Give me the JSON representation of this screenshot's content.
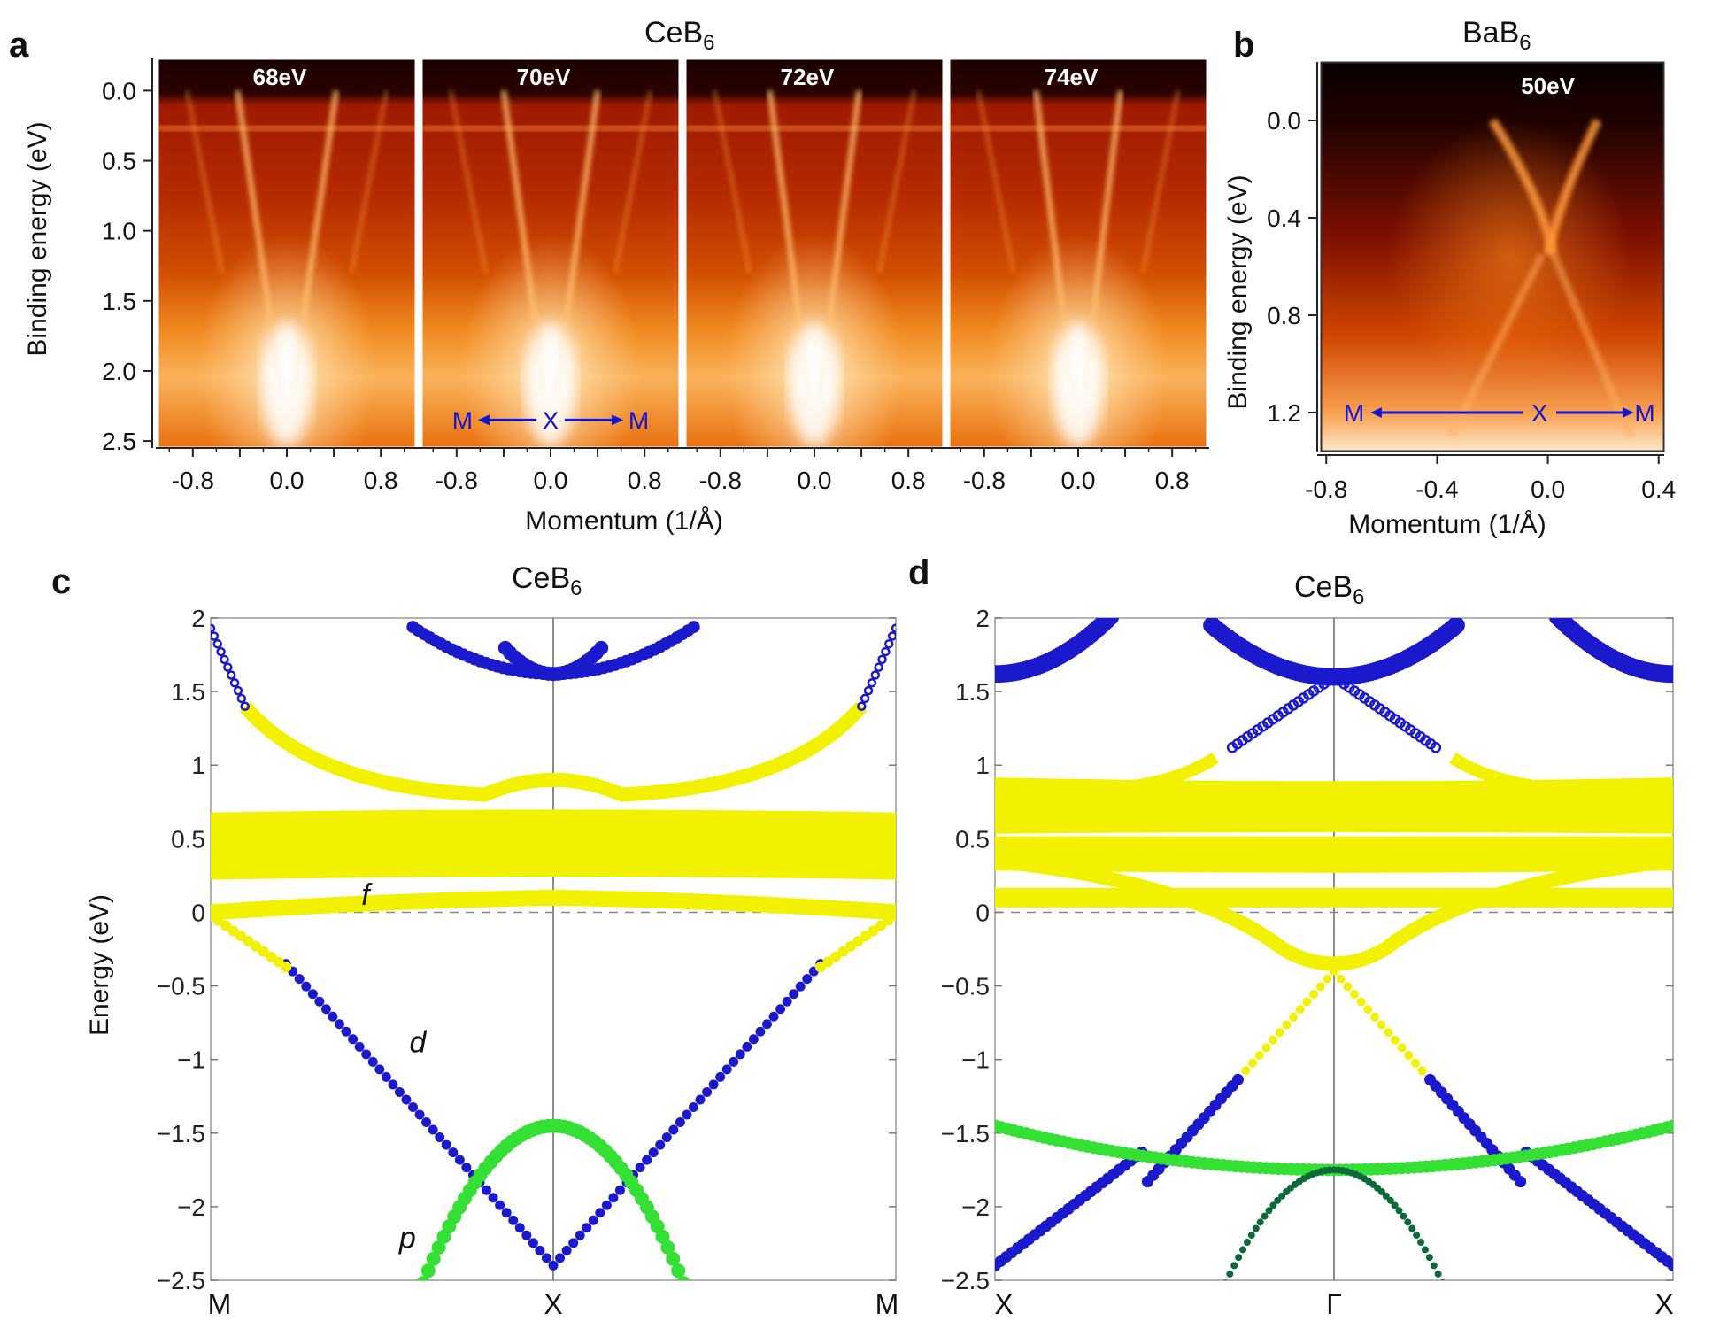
{
  "panels": {
    "a": {
      "letter": "a",
      "title_main": "CeB",
      "title_sub": "6",
      "ylabel": "Binding energy (eV)",
      "xlabel": "Momentum (1/Å)",
      "yticks": [
        "0.0",
        "0.5",
        "1.0",
        "1.5",
        "2.0",
        "2.5"
      ],
      "xticks": [
        "-0.8",
        "0.0",
        "0.8"
      ],
      "photon_energies": [
        "68eV",
        "70eV",
        "72eV",
        "74eV"
      ],
      "direction": {
        "left": "M",
        "center": "X",
        "right": "M"
      }
    },
    "b": {
      "letter": "b",
      "title_main": "BaB",
      "title_sub": "6",
      "ylabel": "Binding energy (eV)",
      "xlabel": "Momentum (1/Å)",
      "yticks": [
        "0.0",
        "0.4",
        "0.8",
        "1.2"
      ],
      "xticks": [
        "-0.8",
        "-0.4",
        "0.0",
        "0.4"
      ],
      "photon_energy": "50eV",
      "direction": {
        "left": "M",
        "center": "X",
        "right": "M"
      }
    },
    "c": {
      "letter": "c",
      "title_main": "CeB",
      "title_sub": "6",
      "ylabel": "Energy (eV)",
      "kpoints": [
        "M",
        "X",
        "M"
      ],
      "band_labels": {
        "f": "f",
        "d": "d",
        "p": "p"
      }
    },
    "d": {
      "letter": "d",
      "title_main": "CeB",
      "title_sub": "6",
      "kpoints": [
        "X",
        "Γ",
        "X"
      ]
    }
  },
  "colors": {
    "f_band": "#f2f200",
    "d_band": "#1a1acc",
    "p_band": "#33e033",
    "arrow": "#1515d0"
  },
  "chart_data": [
    {
      "type": "heatmap",
      "panel": "a",
      "title": "CeB6",
      "xlabel": "Momentum (1/Å)",
      "ylabel": "Binding energy (eV)",
      "xlim": [
        -1.1,
        1.1
      ],
      "ylim": [
        2.5,
        -0.1
      ],
      "subpanels": [
        "68eV",
        "70eV",
        "72eV",
        "74eV"
      ]
    },
    {
      "type": "heatmap",
      "panel": "b",
      "title": "BaB6",
      "xlabel": "Momentum (1/Å)",
      "ylabel": "Binding energy (eV)",
      "xlim": [
        -0.8,
        0.4
      ],
      "ylim": [
        1.35,
        -0.05
      ],
      "subpanels": [
        "50eV"
      ]
    },
    {
      "type": "scatter",
      "panel": "c",
      "title": "CeB6",
      "ylabel": "Energy (eV)",
      "ylim": [
        -2.5,
        2
      ],
      "yticks": [
        2,
        1.5,
        1,
        0.5,
        0,
        -0.5,
        -1,
        -1.5,
        -2,
        -2.5
      ],
      "kpath": [
        "M",
        "X",
        "M"
      ],
      "series": [
        {
          "name": "d",
          "points": [
            [
              -1,
              1.93
            ],
            [
              -0.9,
              1.4
            ],
            [
              -0.6,
              0.9
            ],
            [
              -0.3,
              0.82
            ],
            [
              0,
              0.95
            ],
            [
              0.3,
              0.82
            ],
            [
              0.6,
              0.9
            ],
            [
              0.9,
              1.4
            ],
            [
              1,
              1.93
            ]
          ]
        },
        {
          "name": "f",
          "points": [
            [
              -1,
              0.0
            ],
            [
              -0.5,
              0.05
            ],
            [
              0,
              0.1
            ],
            [
              0.5,
              0.05
            ],
            [
              1,
              0.0
            ]
          ]
        },
        {
          "name": "d",
          "points": [
            [
              -1,
              0.0
            ],
            [
              -0.8,
              -0.4
            ],
            [
              -0.6,
              -1.0
            ],
            [
              -0.3,
              -1.9
            ],
            [
              0,
              -2.4
            ],
            [
              0.3,
              -1.9
            ],
            [
              0.6,
              -1.0
            ],
            [
              0.8,
              -0.4
            ],
            [
              1,
              0.0
            ]
          ]
        },
        {
          "name": "p",
          "points": [
            [
              -0.38,
              -2.5
            ],
            [
              -0.2,
              -1.8
            ],
            [
              0,
              -1.45
            ],
            [
              0.2,
              -1.8
            ],
            [
              0.38,
              -2.5
            ]
          ]
        }
      ]
    },
    {
      "type": "scatter",
      "panel": "d",
      "title": "CeB6",
      "ylim": [
        -2.5,
        2
      ],
      "yticks": [
        2,
        1.5,
        1,
        0.5,
        0,
        -0.5,
        -1,
        -1.5,
        -2,
        -2.5
      ],
      "kpath": [
        "X",
        "Γ",
        "X"
      ],
      "series": [
        {
          "name": "d",
          "points": [
            [
              -1,
              -2.4
            ],
            [
              -0.5,
              -1.6
            ],
            [
              -0.2,
              -0.8
            ],
            [
              0,
              -0.4
            ],
            [
              0.2,
              -0.8
            ],
            [
              0.5,
              -1.6
            ],
            [
              1,
              -2.4
            ]
          ]
        },
        {
          "name": "p",
          "points": [
            [
              -1,
              -1.45
            ],
            [
              -0.5,
              -1.6
            ],
            [
              0,
              -1.75
            ],
            [
              0.5,
              -1.6
            ],
            [
              1,
              -1.45
            ]
          ]
        },
        {
          "name": "d",
          "points": [
            [
              -0.35,
              1.0
            ],
            [
              -0.15,
              1.35
            ],
            [
              0,
              1.6
            ],
            [
              0.15,
              1.35
            ],
            [
              0.35,
              1.0
            ]
          ]
        }
      ]
    }
  ]
}
